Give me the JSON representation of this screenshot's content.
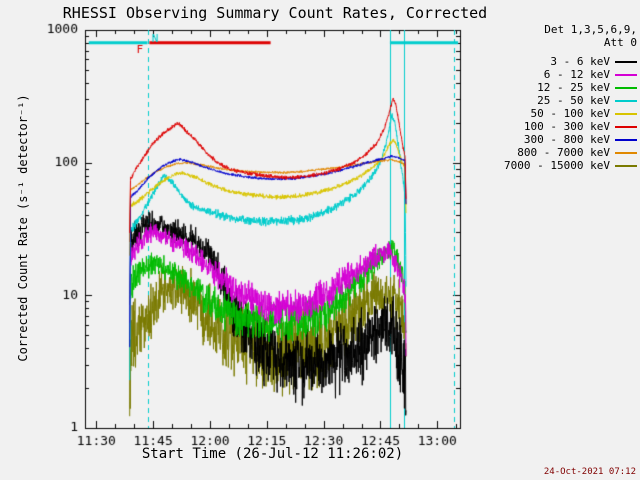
{
  "title": "RHESSI Observing Summary Count Rates, Corrected",
  "timestamp": "24-Oct-2021 07:12",
  "legend": {
    "header_line1": "Det 1,3,5,6,9,",
    "header_line2": "Att 0",
    "entries": [
      {
        "label": "3 - 6 keV",
        "color": "#000000"
      },
      {
        "label": "6 - 12 keV",
        "color": "#d400d4"
      },
      {
        "label": "12 - 25 keV",
        "color": "#00bb00"
      },
      {
        "label": "25 - 50 keV",
        "color": "#00cccc"
      },
      {
        "label": "50 - 100 keV",
        "color": "#d8c400"
      },
      {
        "label": "100 - 300 keV",
        "color": "#dd0000"
      },
      {
        "label": "300 - 800 keV",
        "color": "#0000cc"
      },
      {
        "label": "800 - 7000 keV",
        "color": "#e08800"
      },
      {
        "label": "7000 - 15000 keV",
        "color": "#7a7a00"
      }
    ]
  },
  "chart_data": {
    "type": "line",
    "title": "RHESSI Observing Summary Count Rates, Corrected",
    "xlabel": "Start Time (26-Jul-12 11:26:02)",
    "ylabel": "Corrected Count Rate (s⁻¹ detector⁻¹)",
    "y_scale": "log",
    "ylim": [
      1,
      1000
    ],
    "y_ticks": [
      {
        "v": 1,
        "label": "1"
      },
      {
        "v": 10,
        "label": "10"
      },
      {
        "v": 100,
        "label": "100"
      },
      {
        "v": 1000,
        "label": "1000"
      }
    ],
    "t_range": [
      687,
      786
    ],
    "x_ticks": [
      {
        "t": 690,
        "label": "11:30"
      },
      {
        "t": 705,
        "label": "11:45"
      },
      {
        "t": 720,
        "label": "12:00"
      },
      {
        "t": 735,
        "label": "12:15"
      },
      {
        "t": 750,
        "label": "12:30"
      },
      {
        "t": 765,
        "label": "12:45"
      },
      {
        "t": 780,
        "label": "13:00"
      }
    ],
    "x_minor_step_min": 5,
    "axis_color": "#000000",
    "events": {
      "line_color": "#00cccc",
      "dashed_vlines_t": [
        703.5,
        784.5
      ],
      "solid_vlines_t": [
        767.5,
        771.2
      ],
      "flag_bars": [
        {
          "t0": 688,
          "t1": 703.5,
          "v": 800,
          "color": "#00cccc"
        },
        {
          "t0": 704,
          "t1": 736,
          "v": 800,
          "color": "#dd0000"
        },
        {
          "t0": 767.5,
          "t1": 785.5,
          "v": 800,
          "color": "#00cccc"
        }
      ],
      "flag_labels": [
        {
          "text": "F",
          "t": 701.5,
          "v": 700,
          "color": "#dd0000"
        },
        {
          "text": "N",
          "t": 705.5,
          "v": 860,
          "color": "#00cccc"
        }
      ]
    },
    "series": [
      {
        "name": "7000 - 15000 keV",
        "color": "#7a7a00",
        "noise": 0.15,
        "points": [
          [
            698.8,
            1.5
          ],
          [
            699,
            4
          ],
          [
            701,
            5
          ],
          [
            703,
            6.5
          ],
          [
            705,
            8
          ],
          [
            707,
            10
          ],
          [
            709,
            11
          ],
          [
            711,
            11.8
          ],
          [
            713,
            11
          ],
          [
            715,
            9.8
          ],
          [
            717,
            8.4
          ],
          [
            719,
            7.2
          ],
          [
            722,
            6
          ],
          [
            725,
            5.2
          ],
          [
            728,
            4.6
          ],
          [
            732,
            4.1
          ],
          [
            736,
            3.7
          ],
          [
            740,
            3.6
          ],
          [
            744,
            3.7
          ],
          [
            748,
            4.1
          ],
          [
            752,
            4.8
          ],
          [
            755,
            5.6
          ],
          [
            758,
            6.8
          ],
          [
            760,
            8
          ],
          [
            762,
            9
          ],
          [
            764,
            9.8
          ],
          [
            766,
            10
          ],
          [
            768,
            9.4
          ],
          [
            769.5,
            8
          ],
          [
            771.5,
            6.2
          ],
          [
            771.8,
            2.5
          ]
        ]
      },
      {
        "name": "3 - 6 keV",
        "color": "#000000",
        "noise": 0.13,
        "points": [
          [
            698.8,
            8
          ],
          [
            699,
            24
          ],
          [
            700.5,
            29
          ],
          [
            702.5,
            33
          ],
          [
            704.5,
            35
          ],
          [
            706.5,
            34
          ],
          [
            708.5,
            32
          ],
          [
            710.5,
            30
          ],
          [
            712.5,
            28
          ],
          [
            714.5,
            26
          ],
          [
            716.5,
            25
          ],
          [
            718.5,
            23
          ],
          [
            720.5,
            19
          ],
          [
            722.5,
            14
          ],
          [
            724.5,
            10
          ],
          [
            726.5,
            7.5
          ],
          [
            729,
            5.5
          ],
          [
            732,
            4.5
          ],
          [
            736,
            3.8
          ],
          [
            740,
            3.2
          ],
          [
            744,
            3
          ],
          [
            748,
            3
          ],
          [
            752,
            3.2
          ],
          [
            756,
            3.6
          ],
          [
            759,
            4
          ],
          [
            762,
            4.5
          ],
          [
            765,
            5.5
          ],
          [
            767,
            6
          ],
          [
            768.5,
            5
          ],
          [
            770,
            3.5
          ],
          [
            771.5,
            2.6
          ],
          [
            771.8,
            1.3
          ]
        ]
      },
      {
        "name": "12 - 25 keV",
        "color": "#00bb00",
        "noise": 0.09,
        "points": [
          [
            698.8,
            4
          ],
          [
            699,
            12
          ],
          [
            701,
            14
          ],
          [
            703,
            16
          ],
          [
            705,
            17.5
          ],
          [
            707,
            17
          ],
          [
            710,
            15
          ],
          [
            713,
            13
          ],
          [
            716,
            11
          ],
          [
            719,
            9.5
          ],
          [
            722,
            8.2
          ],
          [
            726,
            7.2
          ],
          [
            730,
            6.6
          ],
          [
            735,
            6.2
          ],
          [
            740,
            6.1
          ],
          [
            745,
            6.5
          ],
          [
            749,
            7.2
          ],
          [
            753,
            8.2
          ],
          [
            756,
            10
          ],
          [
            759,
            12.5
          ],
          [
            762,
            15.5
          ],
          [
            765,
            19
          ],
          [
            767,
            22
          ],
          [
            768.3,
            23
          ],
          [
            769.5,
            18
          ],
          [
            770.8,
            14
          ],
          [
            771.5,
            11
          ],
          [
            771.8,
            4
          ]
        ]
      },
      {
        "name": "6 - 12 keV",
        "color": "#d400d4",
        "noise": 0.09,
        "points": [
          [
            698.8,
            6
          ],
          [
            699,
            19
          ],
          [
            701,
            24
          ],
          [
            703,
            28
          ],
          [
            705,
            30
          ],
          [
            707,
            29
          ],
          [
            709,
            27
          ],
          [
            712,
            24
          ],
          [
            715,
            21
          ],
          [
            718,
            18
          ],
          [
            721,
            15
          ],
          [
            724,
            12.5
          ],
          [
            727,
            10.5
          ],
          [
            730,
            9.5
          ],
          [
            734,
            8.5
          ],
          [
            738,
            8.2
          ],
          [
            742,
            8.3
          ],
          [
            746,
            9
          ],
          [
            750,
            10
          ],
          [
            754,
            12
          ],
          [
            757,
            14
          ],
          [
            760,
            16.5
          ],
          [
            763,
            19
          ],
          [
            766,
            21
          ],
          [
            768,
            20
          ],
          [
            769.5,
            16
          ],
          [
            771.5,
            11
          ],
          [
            771.8,
            4
          ]
        ]
      },
      {
        "name": "25 - 50 keV",
        "color": "#00cccc",
        "noise": 0.05,
        "points": [
          [
            698.8,
            2.5
          ],
          [
            699,
            30
          ],
          [
            700.5,
            35
          ],
          [
            702.5,
            44
          ],
          [
            704.5,
            55
          ],
          [
            706.5,
            70
          ],
          [
            708,
            80
          ],
          [
            709.5,
            74
          ],
          [
            711.5,
            62
          ],
          [
            713.5,
            52
          ],
          [
            716,
            46
          ],
          [
            719,
            43
          ],
          [
            723,
            40
          ],
          [
            727,
            38
          ],
          [
            733,
            36
          ],
          [
            739,
            36
          ],
          [
            745,
            38
          ],
          [
            749,
            41
          ],
          [
            753,
            46
          ],
          [
            757,
            54
          ],
          [
            760,
            64
          ],
          [
            763,
            80
          ],
          [
            765.5,
            110
          ],
          [
            767.2,
            170
          ],
          [
            768,
            230
          ],
          [
            768.8,
            200
          ],
          [
            769.8,
            130
          ],
          [
            770.8,
            80
          ],
          [
            771.5,
            60
          ],
          [
            771.8,
            8
          ]
        ]
      },
      {
        "name": "50 - 100 keV",
        "color": "#d8c400",
        "noise": 0.03,
        "points": [
          [
            698.8,
            20
          ],
          [
            699,
            47
          ],
          [
            702,
            54
          ],
          [
            705,
            64
          ],
          [
            708,
            74
          ],
          [
            710.5,
            81
          ],
          [
            712.5,
            84
          ],
          [
            715.5,
            79
          ],
          [
            718.5,
            72
          ],
          [
            721.5,
            66
          ],
          [
            725,
            61
          ],
          [
            731,
            57
          ],
          [
            737,
            55
          ],
          [
            743,
            56
          ],
          [
            749,
            60
          ],
          [
            753,
            65
          ],
          [
            757,
            72
          ],
          [
            760,
            80
          ],
          [
            763,
            92
          ],
          [
            765.5,
            108
          ],
          [
            767.3,
            135
          ],
          [
            768.3,
            150
          ],
          [
            769.2,
            135
          ],
          [
            770.2,
            110
          ],
          [
            771.5,
            92
          ],
          [
            771.8,
            35
          ]
        ]
      },
      {
        "name": "800 - 7000 keV",
        "color": "#e08800",
        "noise": 0.018,
        "points": [
          [
            698.8,
            25
          ],
          [
            699,
            62
          ],
          [
            702,
            72
          ],
          [
            705,
            83
          ],
          [
            708,
            92
          ],
          [
            711,
            98
          ],
          [
            714,
            100
          ],
          [
            718,
            96
          ],
          [
            722,
            91
          ],
          [
            727,
            87
          ],
          [
            733,
            85
          ],
          [
            739,
            84
          ],
          [
            745,
            86
          ],
          [
            750,
            89
          ],
          [
            755,
            93
          ],
          [
            759,
            97
          ],
          [
            763,
            101
          ],
          [
            766,
            104
          ],
          [
            768,
            105
          ],
          [
            770,
            101
          ],
          [
            771.5,
            97
          ],
          [
            771.8,
            40
          ]
        ]
      },
      {
        "name": "300 - 800 keV",
        "color": "#0000cc",
        "noise": 0.02,
        "points": [
          [
            698.8,
            4
          ],
          [
            699,
            55
          ],
          [
            701,
            62
          ],
          [
            704,
            78
          ],
          [
            707,
            92
          ],
          [
            710,
            102
          ],
          [
            712,
            106
          ],
          [
            715,
            101
          ],
          [
            718,
            94
          ],
          [
            721,
            88
          ],
          [
            724,
            83
          ],
          [
            730,
            78
          ],
          [
            736,
            75
          ],
          [
            742,
            76
          ],
          [
            748,
            80
          ],
          [
            752,
            84
          ],
          [
            756,
            90
          ],
          [
            760,
            97
          ],
          [
            763,
            103
          ],
          [
            766,
            108
          ],
          [
            768,
            112
          ],
          [
            769.5,
            110
          ],
          [
            771.5,
            103
          ],
          [
            771.8,
            40
          ]
        ]
      },
      {
        "name": "100 - 300 keV",
        "color": "#dd0000",
        "noise": 0.03,
        "points": [
          [
            698.8,
            30
          ],
          [
            699,
            75
          ],
          [
            700.5,
            90
          ],
          [
            702.5,
            110
          ],
          [
            705,
            140
          ],
          [
            708,
            170
          ],
          [
            710.5,
            190
          ],
          [
            711.5,
            200
          ],
          [
            713.5,
            175
          ],
          [
            716,
            150
          ],
          [
            719,
            120
          ],
          [
            722,
            100
          ],
          [
            725,
            90
          ],
          [
            728,
            85
          ],
          [
            734,
            80
          ],
          [
            740,
            77
          ],
          [
            746,
            79
          ],
          [
            750,
            83
          ],
          [
            754,
            90
          ],
          [
            758,
            100
          ],
          [
            761,
            115
          ],
          [
            764,
            140
          ],
          [
            766,
            180
          ],
          [
            767.5,
            250
          ],
          [
            768.3,
            300
          ],
          [
            769,
            280
          ],
          [
            770,
            190
          ],
          [
            771,
            130
          ],
          [
            771.5,
            110
          ],
          [
            771.8,
            45
          ]
        ]
      }
    ]
  }
}
